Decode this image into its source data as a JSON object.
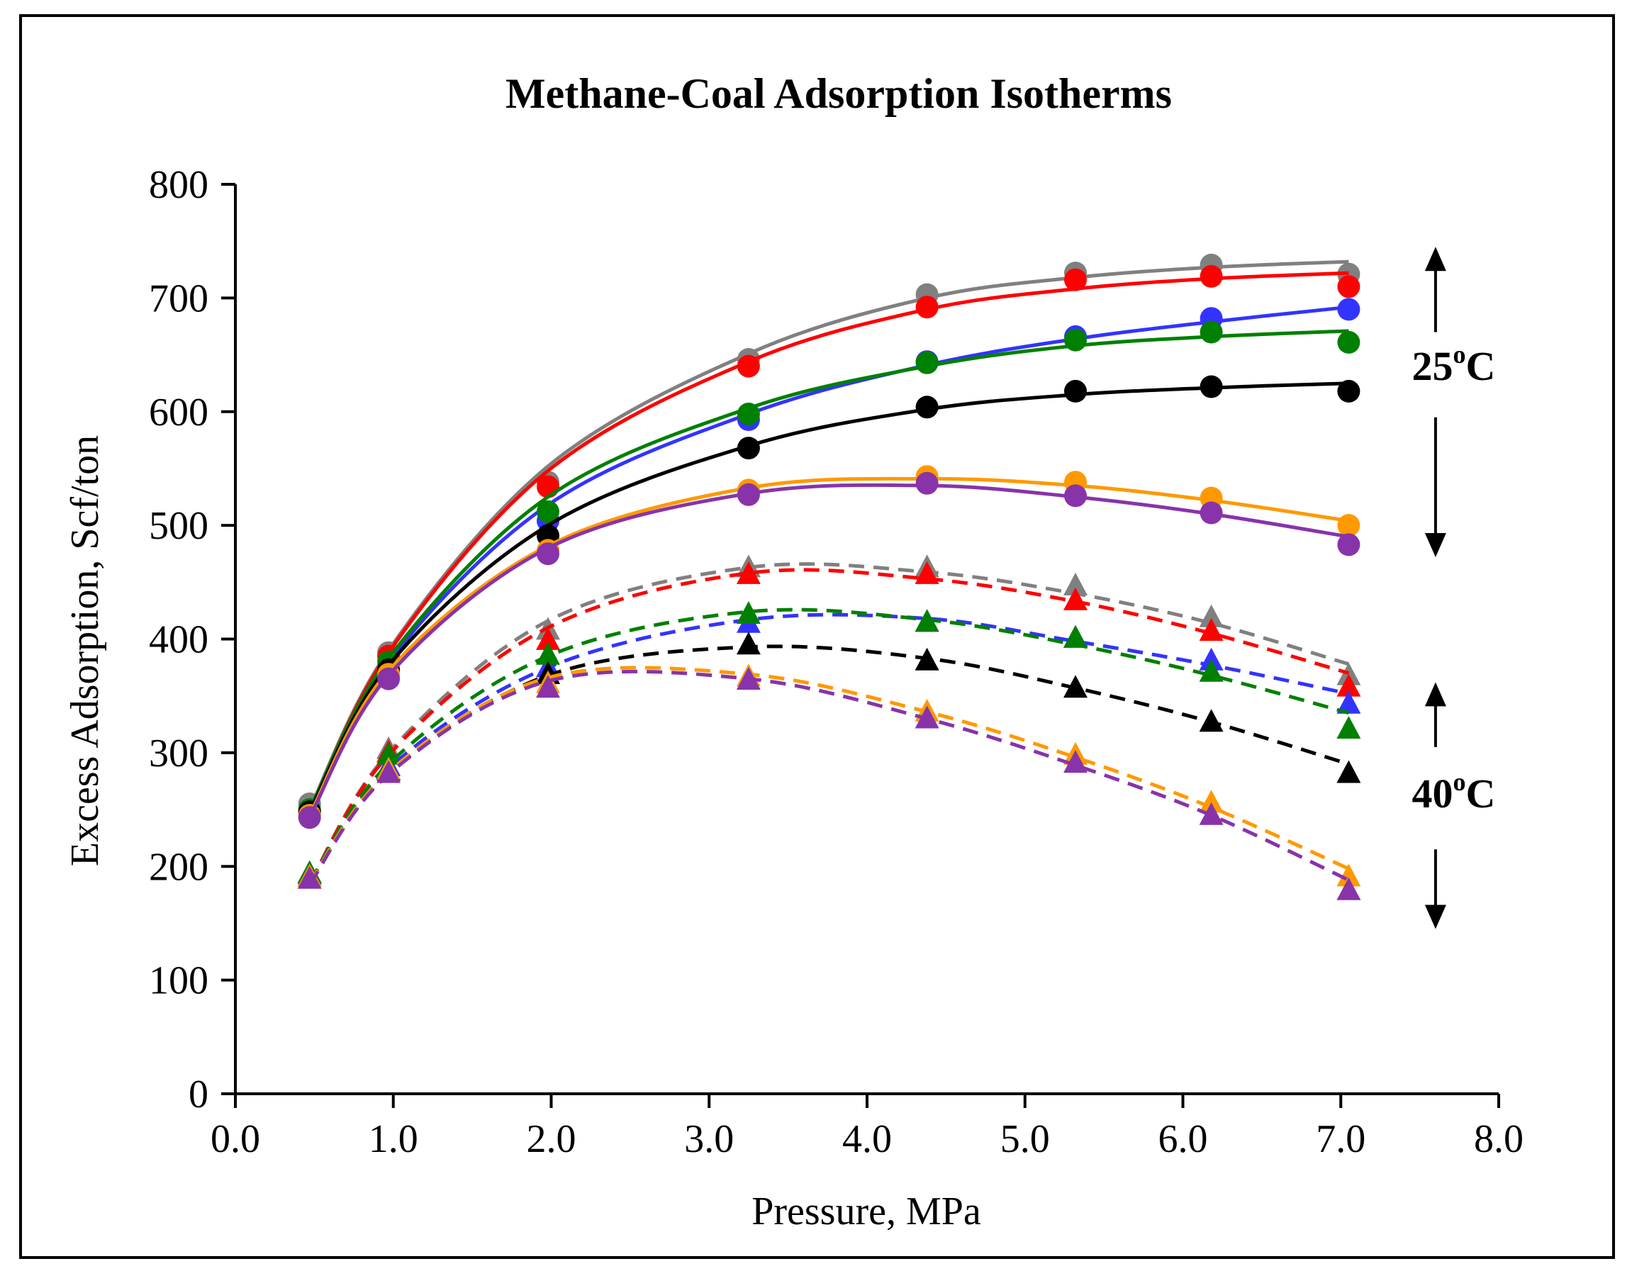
{
  "chart_data": {
    "type": "scatter",
    "title": "Methane-Coal Adsorption Isotherms",
    "xlabel": "Pressure, MPa",
    "ylabel": "Excess Adsorption, Scf/ton",
    "xlim": [
      0,
      8
    ],
    "ylim": [
      0,
      800
    ],
    "xticks": [
      "0.0",
      "1.0",
      "2.0",
      "3.0",
      "4.0",
      "5.0",
      "6.0",
      "7.0",
      "8.0"
    ],
    "yticks": [
      "0",
      "100",
      "200",
      "300",
      "400",
      "500",
      "600",
      "700",
      "800"
    ],
    "grid": false,
    "legend": "none",
    "x": [
      0.47,
      0.97,
      1.98,
      3.25,
      4.38,
      5.32,
      6.18,
      7.05
    ],
    "annotations": [
      {
        "main": "25",
        "sup": "o",
        "tail": "C",
        "x": 7.45,
        "y": 628
      },
      {
        "main": "40",
        "sup": "o",
        "tail": "C",
        "x": 7.45,
        "y": 252
      }
    ],
    "arrows": [
      {
        "x": 7.6,
        "y_from": 670,
        "y_to": 745
      },
      {
        "x": 7.6,
        "y_from": 595,
        "y_to": 472
      },
      {
        "x": 7.6,
        "y_from": 305,
        "y_to": 362
      },
      {
        "x": 7.6,
        "y_from": 215,
        "y_to": 145
      }
    ],
    "series": [
      {
        "name": "Gray 25°C",
        "temperature": "25C",
        "marker": "circle",
        "line": "solid",
        "color": "#808080",
        "values": [
          255,
          388,
          538,
          646,
          703,
          722,
          729,
          721
        ],
        "fit": [
          250,
          390,
          552,
          651,
          700,
          718,
          727,
          732
        ]
      },
      {
        "name": "Red 25°C",
        "temperature": "25C",
        "marker": "circle",
        "line": "solid",
        "color": "#ff0000",
        "values": [
          249,
          385,
          534,
          640,
          692,
          716,
          719,
          710
        ],
        "fit": [
          248,
          388,
          548,
          644,
          690,
          708,
          717,
          722
        ]
      },
      {
        "name": "Blue 25°C",
        "temperature": "25C",
        "marker": "circle",
        "line": "solid",
        "color": "#3333ff",
        "values": [
          247,
          372,
          504,
          593,
          644,
          666,
          682,
          690
        ],
        "fit": [
          248,
          380,
          518,
          598,
          641,
          664,
          679,
          692
        ]
      },
      {
        "name": "Green 25°C",
        "temperature": "25C",
        "marker": "circle",
        "line": "solid",
        "color": "#008000",
        "values": [
          250,
          380,
          512,
          598,
          643,
          663,
          670,
          661
        ],
        "fit": [
          250,
          383,
          525,
          603,
          640,
          658,
          666,
          671
        ]
      },
      {
        "name": "Black 25°C",
        "temperature": "25C",
        "marker": "circle",
        "line": "solid",
        "color": "#000000",
        "values": [
          248,
          373,
          491,
          568,
          604,
          618,
          622,
          618
        ],
        "fit": [
          248,
          377,
          500,
          570,
          602,
          615,
          621,
          625
        ]
      },
      {
        "name": "Orange 25°C",
        "temperature": "25C",
        "marker": "circle",
        "line": "solid",
        "color": "#ff9900",
        "values": [
          245,
          369,
          478,
          531,
          543,
          538,
          524,
          500
        ],
        "fit": [
          245,
          372,
          482,
          533,
          541,
          535,
          522,
          504
        ]
      },
      {
        "name": "Purple 25°C",
        "temperature": "25C",
        "marker": "circle",
        "line": "solid",
        "color": "#8833aa",
        "values": [
          243,
          365,
          475,
          527,
          537,
          526,
          511,
          483
        ],
        "fit": [
          243,
          368,
          480,
          528,
          535,
          525,
          510,
          490
        ]
      },
      {
        "name": "Gray 40°C",
        "temperature": "40C",
        "marker": "triangle",
        "line": "dashed",
        "color": "#808080",
        "values": [
          193,
          302,
          407,
          462,
          462,
          446,
          418,
          367
        ],
        "fit": [
          185,
          300,
          416,
          463,
          459,
          440,
          414,
          378
        ]
      },
      {
        "name": "Red 40°C",
        "temperature": "40C",
        "marker": "triangle",
        "line": "dashed",
        "color": "#ff0000",
        "values": [
          192,
          299,
          398,
          456,
          456,
          433,
          406,
          357
        ],
        "fit": [
          185,
          298,
          410,
          458,
          453,
          433,
          405,
          370
        ]
      },
      {
        "name": "Blue 40°C",
        "temperature": "40C",
        "marker": "triangle",
        "line": "dashed",
        "color": "#3333ff",
        "values": [
          192,
          287,
          374,
          413,
          414,
          400,
          380,
          342
        ],
        "fit": [
          185,
          286,
          375,
          417,
          418,
          398,
          377,
          352
        ]
      },
      {
        "name": "Green 40°C",
        "temperature": "40C",
        "marker": "triangle",
        "line": "dashed",
        "color": "#008000",
        "values": [
          193,
          297,
          385,
          421,
          414,
          400,
          370,
          320
        ],
        "fit": [
          186,
          290,
          385,
          424,
          417,
          395,
          368,
          335
        ]
      },
      {
        "name": "Black 40°C",
        "temperature": "40C",
        "marker": "triangle",
        "line": "dashed",
        "color": "#000000",
        "values": [
          190,
          283,
          368,
          394,
          380,
          356,
          326,
          281
        ],
        "fit": [
          185,
          282,
          368,
          393,
          383,
          357,
          327,
          290
        ]
      },
      {
        "name": "Orange 40°C",
        "temperature": "40C",
        "marker": "triangle",
        "line": "dashed",
        "color": "#ff9900",
        "values": [
          190,
          284,
          360,
          366,
          335,
          297,
          255,
          190
        ],
        "fit": [
          185,
          283,
          366,
          369,
          336,
          296,
          252,
          198
        ]
      },
      {
        "name": "Purple 40°C",
        "temperature": "40C",
        "marker": "triangle",
        "line": "dashed",
        "color": "#8833aa",
        "values": [
          188,
          281,
          356,
          363,
          329,
          290,
          244,
          178
        ],
        "fit": [
          184,
          281,
          363,
          365,
          330,
          289,
          245,
          188
        ]
      }
    ]
  }
}
